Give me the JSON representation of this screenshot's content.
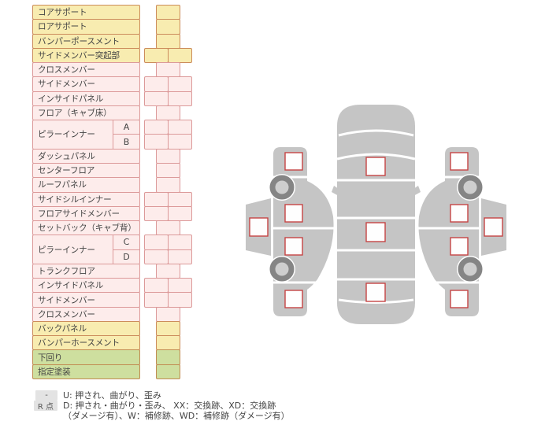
{
  "table": {
    "rows": [
      {
        "label": "コアサポート",
        "color": "yellow",
        "cells": 1
      },
      {
        "label": "ロアサポート",
        "color": "yellow",
        "cells": 1
      },
      {
        "label": "バンパーポースメント",
        "color": "yellow",
        "cells": 1
      },
      {
        "label": "サイドメンバー突起部",
        "color": "yellow",
        "cells": 2
      },
      {
        "label": "クロスメンバー",
        "color": "pink",
        "cells": 1
      },
      {
        "label": "サイドメンバー",
        "color": "pink",
        "cells": 2
      },
      {
        "label": "インサイドパネル",
        "color": "pink",
        "cells": 2
      },
      {
        "label": "フロア（キャブ床）",
        "color": "pink",
        "cells": 1
      },
      {
        "label": "ピラーインナー",
        "color": "pink",
        "cells": 2,
        "subs": [
          "A",
          "B"
        ]
      },
      {
        "label": "ダッシュパネル",
        "color": "pink",
        "cells": 1
      },
      {
        "label": "センターフロア",
        "color": "pink",
        "cells": 1
      },
      {
        "label": "ルーフパネル",
        "color": "pink",
        "cells": 1
      },
      {
        "label": "サイドシルインナー",
        "color": "pink",
        "cells": 2
      },
      {
        "label": "フロアサイドメンバー",
        "color": "pink",
        "cells": 2
      },
      {
        "label": "セットバック（キャブ背）",
        "color": "pink",
        "cells": 1
      },
      {
        "label": "ピラーインナー",
        "color": "pink",
        "cells": 2,
        "subs": [
          "C",
          "D"
        ]
      },
      {
        "label": "トランクフロア",
        "color": "pink",
        "cells": 1
      },
      {
        "label": "インサイドパネル",
        "color": "pink",
        "cells": 2
      },
      {
        "label": "サイドメンバー",
        "color": "pink",
        "cells": 2
      },
      {
        "label": "クロスメンバー",
        "color": "pink",
        "cells": 1
      },
      {
        "label": "バックパネル",
        "color": "yellow",
        "cells": 1
      },
      {
        "label": "バンパーホースメント",
        "color": "yellow",
        "cells": 1
      },
      {
        "label": "下回り",
        "color": "green",
        "cells": 1
      },
      {
        "label": "指定塗装",
        "color": "green",
        "cells": 1
      }
    ]
  },
  "legend": {
    "items": [
      {
        "badge": "-",
        "text": "U: 押され、曲がり、歪み"
      },
      {
        "badge": "R 点",
        "text": "D: 押され・曲がり・歪み、 XX：交換跡、XD：交換跡",
        "text2": "（ダメージ有）、W：補修跡、WD：補修跡（ダメージ有）"
      }
    ]
  },
  "diagram": {
    "views": [
      {
        "id": "left-side",
        "checkpoints": [
          "front-fender",
          "front-door",
          "rear-door",
          "rear-fender",
          "sill"
        ]
      },
      {
        "id": "top",
        "checkpoints": [
          "hood",
          "roof",
          "trunk"
        ]
      },
      {
        "id": "right-side",
        "checkpoints": [
          "front-fender",
          "front-door",
          "rear-door",
          "rear-fender",
          "sill"
        ]
      }
    ]
  },
  "colors": {
    "yellow_fill": "#f8ecb0",
    "yellow_border": "#cc8c5c",
    "pink_fill": "#fdeceb",
    "pink_border": "#dc9a9a",
    "green_fill": "#cedf9f",
    "green_border": "#c18c52",
    "checkbox_border": "#c64444",
    "car_body": "#c5c5c5",
    "wheel_ring": "#858585",
    "wheel_hub": "#cecece",
    "badge_bg": "#e3e3e3",
    "text": "#444444"
  }
}
